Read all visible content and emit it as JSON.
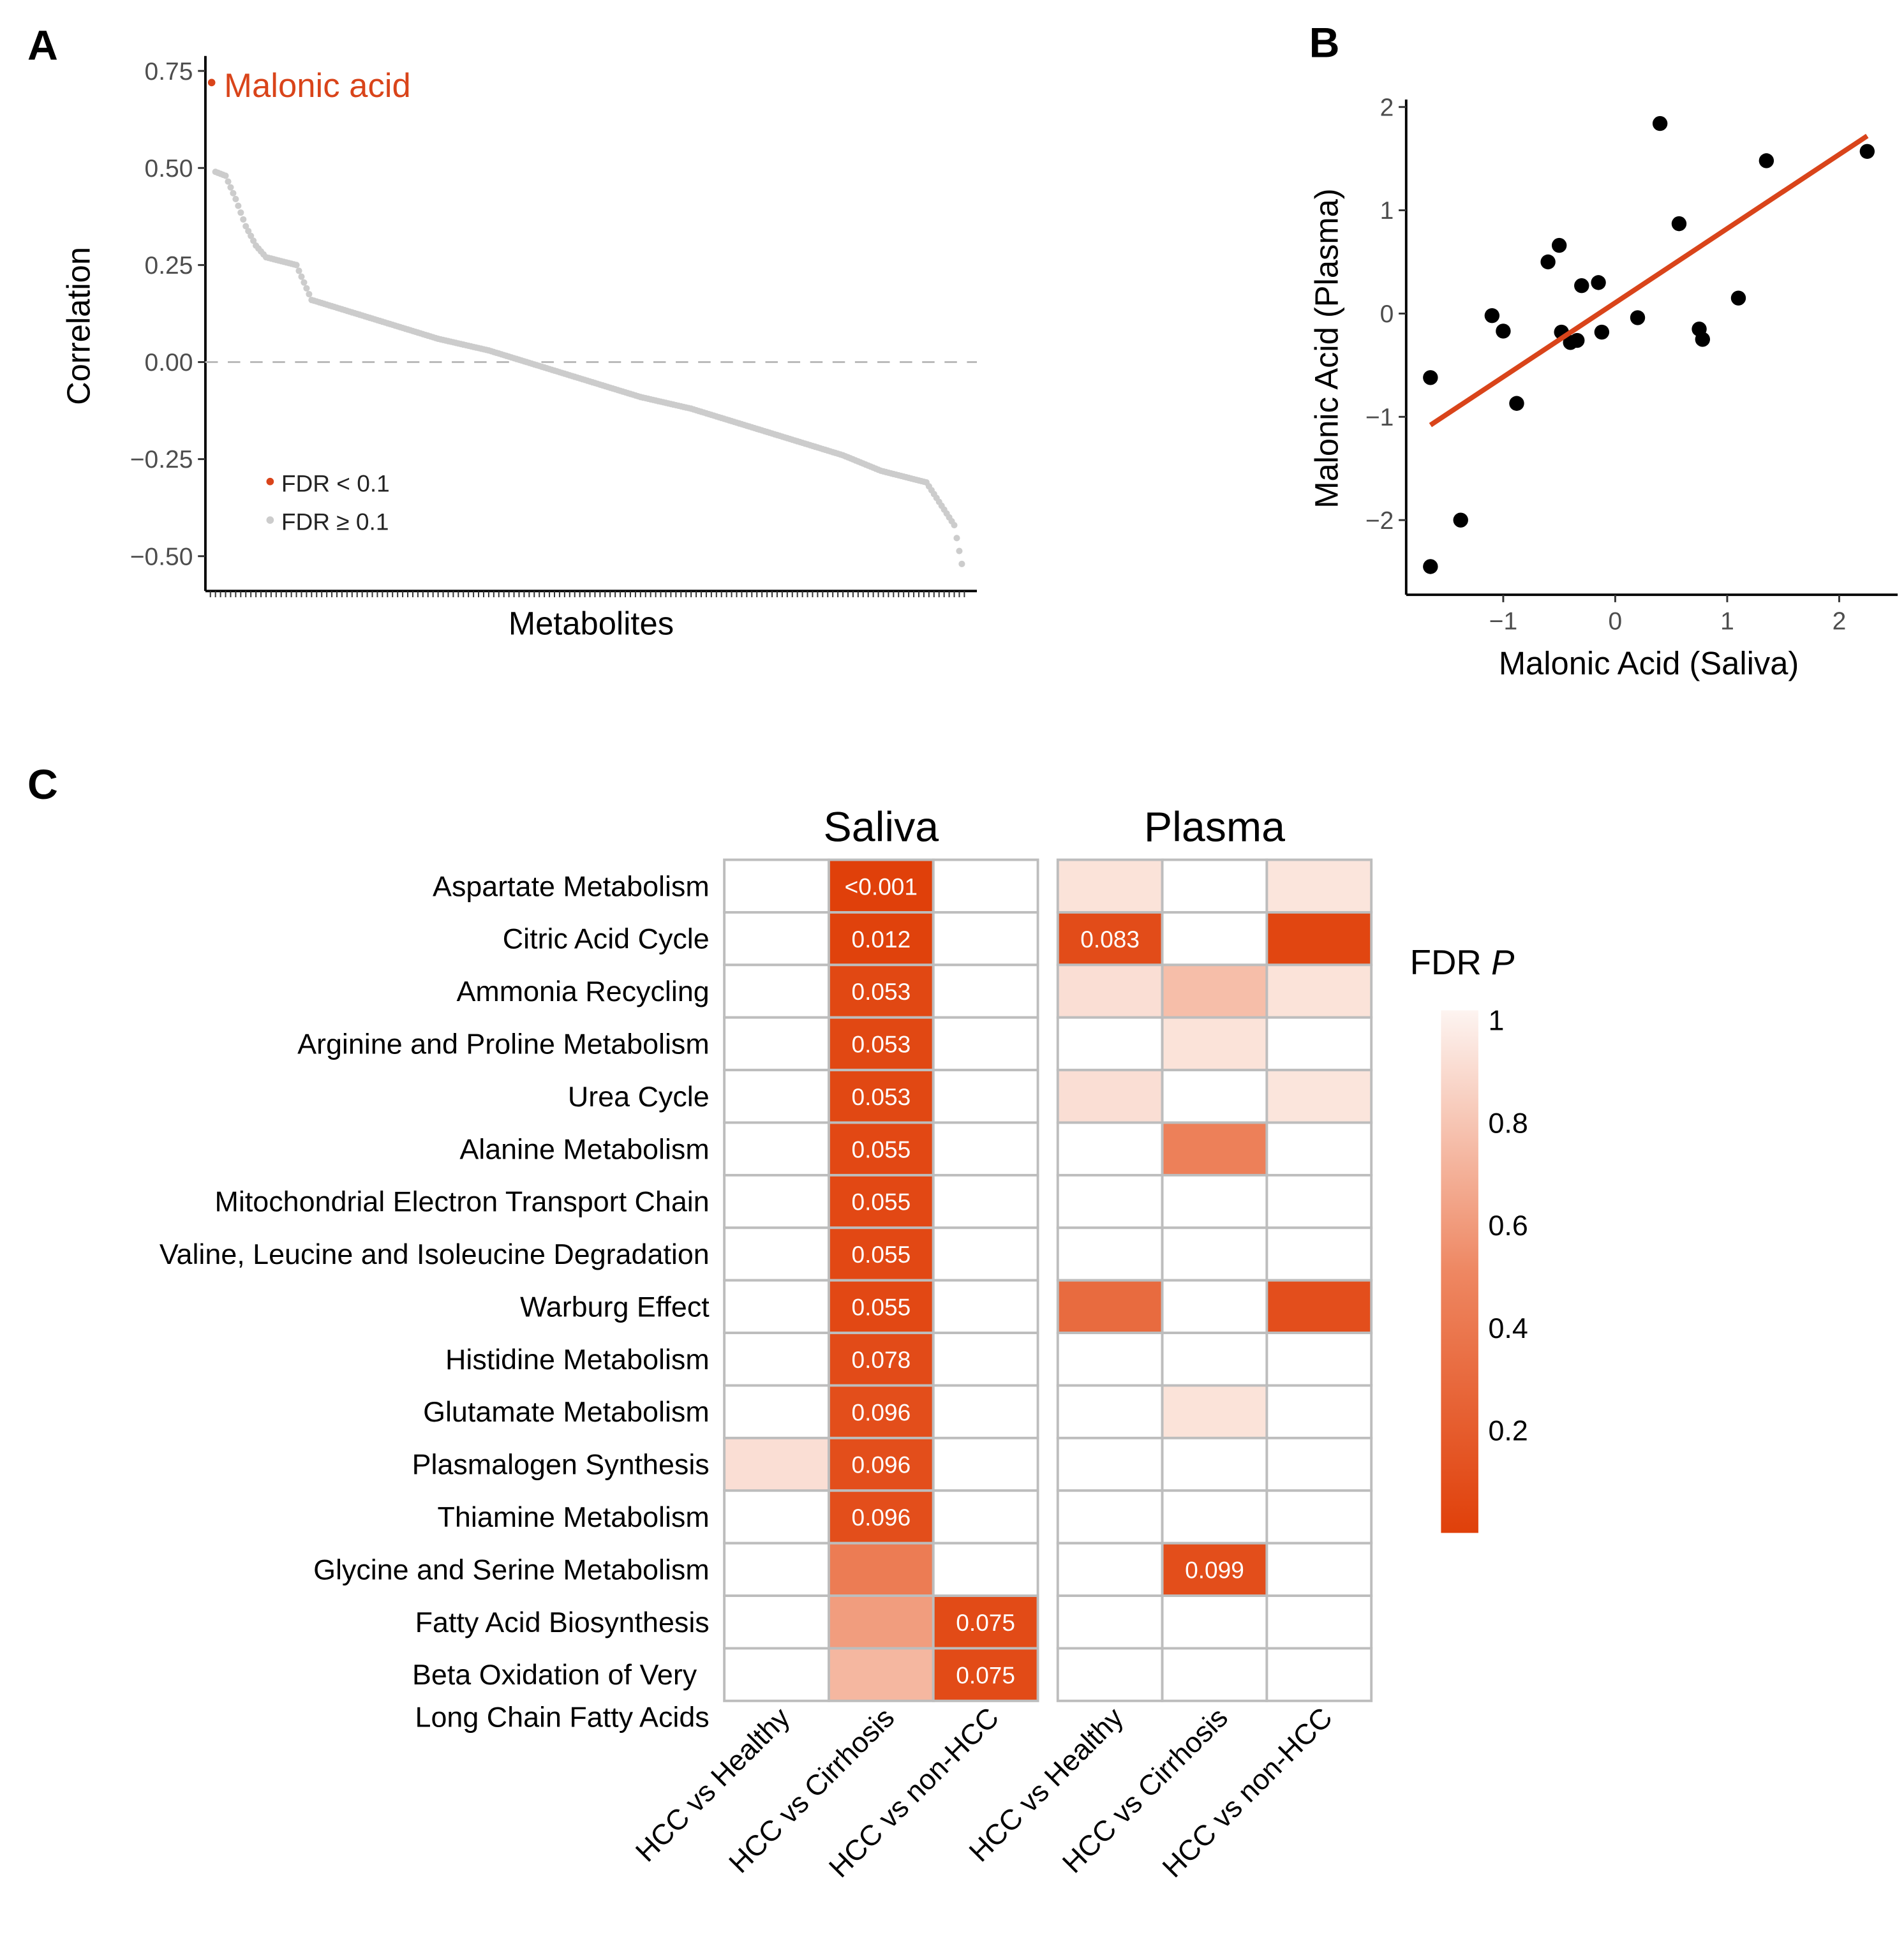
{
  "panels": {
    "a": "A",
    "b": "B",
    "c": "C"
  },
  "chart_data": [
    {
      "type": "scatter",
      "panel": "A",
      "xlabel": "Metabolites",
      "ylabel": "Correlation",
      "ylim": [
        -0.55,
        0.77
      ],
      "yticks": [
        "0.75",
        "0.50",
        "0.25",
        "0.00",
        "−0.25",
        "−0.50"
      ],
      "ytick_values": [
        0.75,
        0.5,
        0.25,
        0,
        -0.25,
        -0.5
      ],
      "n_metabolites": 300,
      "reference_line": 0,
      "highlight": {
        "label": "Malonic acid",
        "rank": 1,
        "value": 0.72,
        "color": "#d9441a"
      },
      "sorted_profile": [
        [
          2,
          0.49
        ],
        [
          6,
          0.48
        ],
        [
          10,
          0.42
        ],
        [
          14,
          0.35
        ],
        [
          18,
          0.3
        ],
        [
          22,
          0.27
        ],
        [
          34,
          0.25
        ],
        [
          40,
          0.16
        ],
        [
          60,
          0.12
        ],
        [
          75,
          0.09
        ],
        [
          90,
          0.06
        ],
        [
          110,
          0.03
        ],
        [
          130,
          -0.01
        ],
        [
          150,
          -0.05
        ],
        [
          170,
          -0.09
        ],
        [
          190,
          -0.12
        ],
        [
          210,
          -0.16
        ],
        [
          230,
          -0.2
        ],
        [
          250,
          -0.24
        ],
        [
          265,
          -0.28
        ],
        [
          283,
          -0.31
        ],
        [
          288,
          -0.36
        ],
        [
          294,
          -0.42
        ],
        [
          297,
          -0.52
        ]
      ],
      "legend": [
        {
          "label": "FDR < 0.1",
          "color": "#d9441a"
        },
        {
          "label": "FDR ≥ 0.1",
          "color": "#cccccc"
        }
      ],
      "legend_position": "bottom-left"
    },
    {
      "type": "scatter",
      "panel": "B",
      "xlabel": "Malonic Acid (Saliva)",
      "ylabel": "Malonic Acid (Plasma)",
      "xticks": [
        "−1",
        "0",
        "1",
        "2"
      ],
      "xtick_values": [
        -1,
        0,
        1,
        2
      ],
      "yticks": [
        "2",
        "1",
        "0",
        "−1",
        "−2"
      ],
      "ytick_values": [
        2,
        1,
        0,
        -1,
        -2
      ],
      "points": [
        [
          -1.65,
          -0.62
        ],
        [
          -1.65,
          -2.45
        ],
        [
          -1.38,
          -2.0
        ],
        [
          -1.1,
          -0.02
        ],
        [
          -1.0,
          -0.17
        ],
        [
          -0.88,
          -0.87
        ],
        [
          -0.6,
          0.5
        ],
        [
          -0.5,
          0.66
        ],
        [
          -0.48,
          -0.18
        ],
        [
          -0.4,
          -0.28
        ],
        [
          -0.34,
          -0.26
        ],
        [
          -0.3,
          0.27
        ],
        [
          -0.15,
          0.3
        ],
        [
          -0.12,
          -0.18
        ],
        [
          0.2,
          -0.04
        ],
        [
          0.4,
          1.84
        ],
        [
          0.57,
          0.87
        ],
        [
          0.75,
          -0.15
        ],
        [
          0.78,
          -0.25
        ],
        [
          1.1,
          0.15
        ],
        [
          1.35,
          1.48
        ],
        [
          2.25,
          1.57
        ]
      ],
      "fit_line": [
        [
          -1.65,
          -1.08
        ],
        [
          2.25,
          1.72
        ]
      ],
      "fit_color": "#d9441a"
    },
    {
      "type": "heatmap",
      "panel": "C",
      "groups": [
        "Saliva",
        "Plasma"
      ],
      "columns": [
        "HCC vs Healthy",
        "HCC vs Cirrhosis",
        "HCC vs non-HCC"
      ],
      "rows": [
        "Aspartate Metabolism",
        "Citric Acid Cycle",
        "Ammonia Recycling",
        "Arginine and Proline Metabolism",
        "Urea Cycle",
        "Alanine Metabolism",
        "Mitochondrial Electron Transport Chain",
        "Valine, Leucine and Isoleucine Degradation",
        "Warburg Effect",
        "Histidine Metabolism",
        "Glutamate Metabolism",
        "Plasmalogen Synthesis",
        "Thiamine Metabolism",
        "Glycine and Serine Metabolism",
        "Fatty Acid Biosynthesis",
        [
          "Beta Oxidation of Very",
          "Long Chain Fatty Acids"
        ]
      ],
      "values": {
        "Saliva": [
          [
            1,
            0.0005,
            1
          ],
          [
            1,
            0.012,
            1
          ],
          [
            1,
            0.053,
            1
          ],
          [
            1,
            0.053,
            1
          ],
          [
            1,
            0.053,
            1
          ],
          [
            1,
            0.055,
            1
          ],
          [
            1,
            0.055,
            1
          ],
          [
            1,
            0.055,
            1
          ],
          [
            1,
            0.055,
            1
          ],
          [
            1,
            0.078,
            1
          ],
          [
            1,
            0.096,
            1
          ],
          [
            0.9,
            0.096,
            1
          ],
          [
            1,
            0.096,
            1
          ],
          [
            1,
            0.42,
            1
          ],
          [
            1,
            0.6,
            0.075
          ],
          [
            1,
            0.72,
            0.075
          ]
        ],
        "Plasma": [
          [
            0.92,
            1,
            0.93
          ],
          [
            0.083,
            1,
            0.04
          ],
          [
            0.9,
            0.75,
            0.92
          ],
          [
            1,
            0.92,
            1
          ],
          [
            0.9,
            1,
            0.93
          ],
          [
            1,
            0.45,
            1
          ],
          [
            1,
            1,
            1
          ],
          [
            1,
            1,
            1
          ],
          [
            0.3,
            1,
            0.1
          ],
          [
            1,
            1,
            1
          ],
          [
            1,
            0.92,
            1
          ],
          [
            1,
            1,
            1
          ],
          [
            1,
            1,
            1
          ],
          [
            1,
            0.099,
            1
          ],
          [
            1,
            1,
            1
          ],
          [
            1,
            1,
            1
          ]
        ]
      },
      "labels": {
        "Saliva": [
          [
            null,
            "<0.001",
            null
          ],
          [
            null,
            "0.012",
            null
          ],
          [
            null,
            "0.053",
            null
          ],
          [
            null,
            "0.053",
            null
          ],
          [
            null,
            "0.053",
            null
          ],
          [
            null,
            "0.055",
            null
          ],
          [
            null,
            "0.055",
            null
          ],
          [
            null,
            "0.055",
            null
          ],
          [
            null,
            "0.055",
            null
          ],
          [
            null,
            "0.078",
            null
          ],
          [
            null,
            "0.096",
            null
          ],
          [
            null,
            "0.096",
            null
          ],
          [
            null,
            "0.096",
            null
          ],
          [
            null,
            null,
            null
          ],
          [
            null,
            null,
            "0.075"
          ],
          [
            null,
            null,
            "0.075"
          ]
        ],
        "Plasma": [
          [
            null,
            null,
            null
          ],
          [
            "0.083",
            null,
            null
          ],
          [
            null,
            null,
            null
          ],
          [
            null,
            null,
            null
          ],
          [
            null,
            null,
            null
          ],
          [
            null,
            null,
            null
          ],
          [
            null,
            null,
            null
          ],
          [
            null,
            null,
            null
          ],
          [
            null,
            null,
            null
          ],
          [
            null,
            null,
            null
          ],
          [
            null,
            null,
            null
          ],
          [
            null,
            null,
            null
          ],
          [
            null,
            null,
            null
          ],
          [
            null,
            "0.099",
            null
          ],
          [
            null,
            null,
            null
          ],
          [
            null,
            null,
            null
          ]
        ]
      },
      "legend": {
        "title": "FDR ",
        "title_italic": "P",
        "ticks": [
          "1",
          "0.8",
          "0.6",
          "0.4",
          "0.2"
        ],
        "tick_values": [
          1,
          0.8,
          0.6,
          0.4,
          0.2
        ],
        "low_color": "#e0400a",
        "high_color": "#fdf4f1"
      }
    }
  ]
}
